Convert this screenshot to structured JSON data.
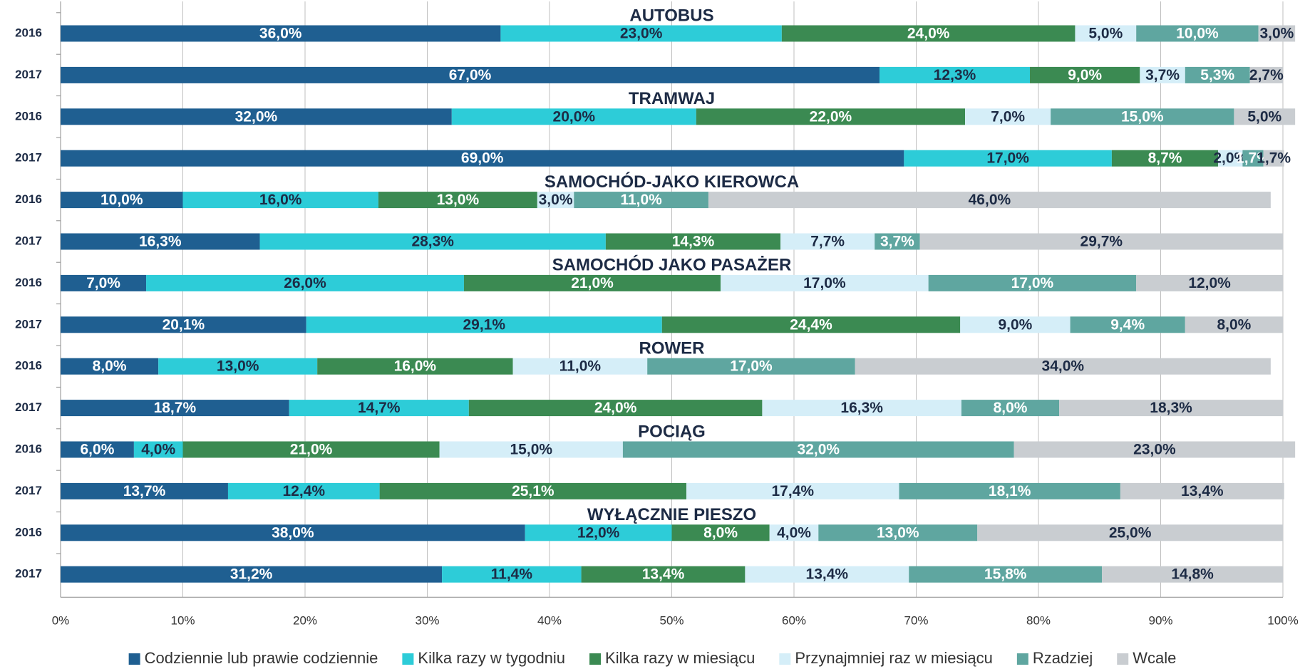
{
  "chart_data": {
    "type": "stacked-bar-horizontal",
    "categories": [
      "2016",
      "2017",
      "2016",
      "2017",
      "2016",
      "2017",
      "2016",
      "2017",
      "2016",
      "2017",
      "2016",
      "2017",
      "2016",
      "2017"
    ],
    "groups": [
      "AUTOBUS",
      "TRAMWAJ",
      "SAMOCHÓD-JAKO KIEROWCA",
      "SAMOCHÓD JAKO PASAŻER",
      "ROWER",
      "POCIĄG",
      "WYŁĄCZNIE PIESZO"
    ],
    "xlim": [
      0,
      100
    ],
    "xticks": [
      {
        "value": 0,
        "label": "0%"
      },
      {
        "value": 10,
        "label": "10%"
      },
      {
        "value": 20,
        "label": "20%"
      },
      {
        "value": 30,
        "label": "30%"
      },
      {
        "value": 40,
        "label": "40%"
      },
      {
        "value": 50,
        "label": "50%"
      },
      {
        "value": 60,
        "label": "60%"
      },
      {
        "value": 70,
        "label": "70%"
      },
      {
        "value": 80,
        "label": "80%"
      },
      {
        "value": 90,
        "label": "90%"
      },
      {
        "value": 100,
        "label": "100%"
      }
    ],
    "grid": true,
    "legend": "bottom",
    "series": [
      {
        "name": "Codziennie lub prawie codziennie",
        "color": "#1f5f91",
        "label_color": "#ffffff",
        "values": [
          36,
          67,
          32,
          69,
          10,
          16.3,
          7,
          20.1,
          8,
          18.7,
          6,
          13.7,
          38,
          31.2
        ],
        "value_labels": [
          "36,0%",
          "67,0%",
          "32,0%",
          "69,0%",
          "10,0%",
          "16,3%",
          "7,0%",
          "20,1%",
          "8,0%",
          "18,7%",
          "6,0%",
          "13,7%",
          "38,0%",
          "31,2%"
        ]
      },
      {
        "name": "Kilka razy w tygodniu",
        "color": "#2dccd8",
        "label_color": "#1d2b45",
        "values": [
          23,
          12.3,
          20,
          17,
          16,
          28.3,
          26,
          29.1,
          13,
          14.7,
          4,
          12.4,
          12,
          11.4
        ],
        "value_labels": [
          "23,0%",
          "12,3%",
          "20,0%",
          "17,0%",
          "16,0%",
          "28,3%",
          "26,0%",
          "29,1%",
          "13,0%",
          "14,7%",
          "4,0%",
          "12,4%",
          "12,0%",
          "11,4%"
        ]
      },
      {
        "name": "Kilka razy w miesiącu",
        "color": "#3b8a52",
        "label_color": "#ffffff",
        "values": [
          24,
          9,
          22,
          8.7,
          13,
          14.3,
          21,
          24.4,
          16,
          24,
          21,
          25.1,
          8,
          13.4
        ],
        "value_labels": [
          "24,0%",
          "9,0%",
          "22,0%",
          "8,7%",
          "13,0%",
          "14,3%",
          "21,0%",
          "24,4%",
          "16,0%",
          "24,0%",
          "21,0%",
          "25,1%",
          "8,0%",
          "13,4%"
        ]
      },
      {
        "name": "Przynajmniej raz w miesiącu",
        "color": "#d5eef8",
        "label_color": "#1d2b45",
        "values": [
          5,
          3.7,
          7,
          2,
          3,
          7.7,
          17,
          9,
          11,
          16.3,
          15,
          17.4,
          4,
          13.4
        ],
        "value_labels": [
          "5,0%",
          "3,7%",
          "7,0%",
          "2,0%",
          "3,0%",
          "7,7%",
          "17,0%",
          "9,0%",
          "11,0%",
          "16,3%",
          "15,0%",
          "17,4%",
          "4,0%",
          "13,4%"
        ]
      },
      {
        "name": "Rzadziej",
        "color": "#5fa6a0",
        "label_color": "#ffffff",
        "values": [
          10,
          5.3,
          15,
          1.7,
          11,
          3.7,
          17,
          9.4,
          17,
          8,
          32,
          18.1,
          13,
          15.8
        ],
        "value_labels": [
          "10,0%",
          "5,3%",
          "15,0%",
          "1,7%",
          "11,0%",
          "3,7%",
          "17,0%",
          "9,4%",
          "17,0%",
          "8,0%",
          "32,0%",
          "18,1%",
          "13,0%",
          "15,8%"
        ]
      },
      {
        "name": "Wcale",
        "color": "#c9cdd1",
        "label_color": "#1d2b45",
        "values": [
          3,
          2.7,
          5,
          1.7,
          46,
          29.7,
          12,
          8,
          34,
          18.3,
          23,
          13.4,
          25,
          14.8
        ],
        "value_labels": [
          "3,0%",
          "2,7%",
          "5,0%",
          "1,7%",
          "46,0%",
          "29,7%",
          "12,0%",
          "8,0%",
          "34,0%",
          "18,3%",
          "23,0%",
          "13,4%",
          "25,0%",
          "14,8%"
        ]
      }
    ]
  }
}
